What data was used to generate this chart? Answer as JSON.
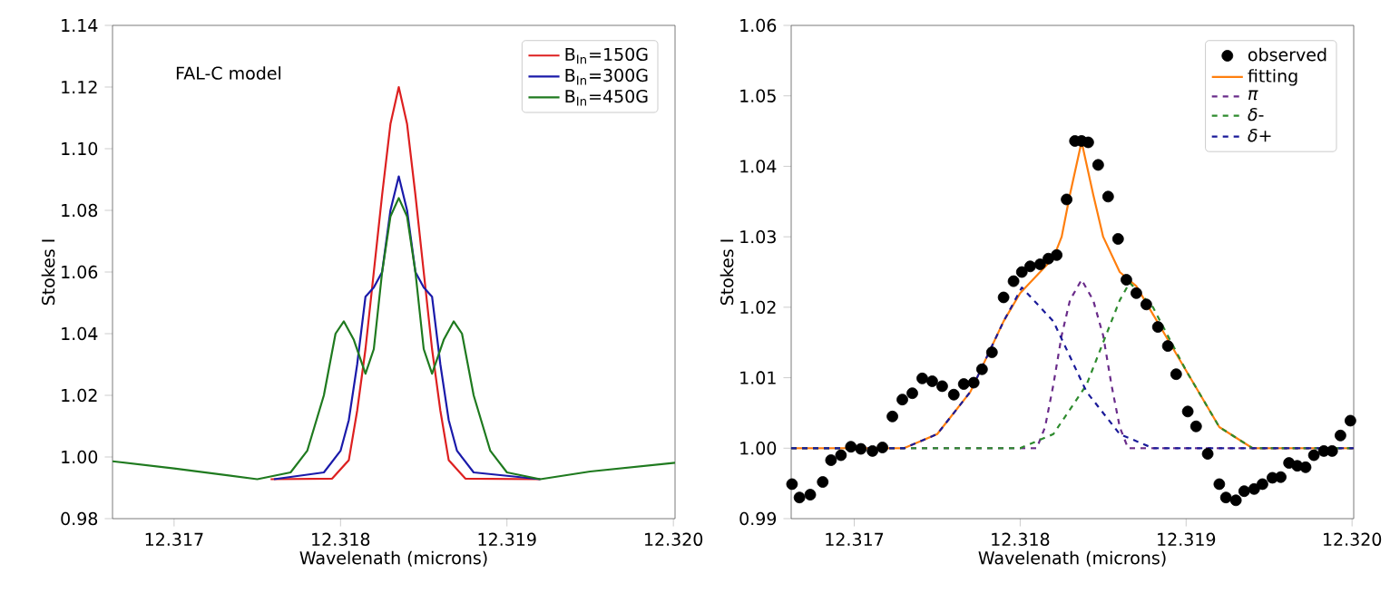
{
  "chart_data": [
    {
      "type": "line",
      "xlabel": "Wavelenath (microns)",
      "ylabel": "Stokes I",
      "annotations": [
        "FAL-C model"
      ],
      "legend": "top right",
      "grid": false,
      "xlim": [
        12.31663,
        12.32001
      ],
      "ylim": [
        0.98,
        1.14
      ],
      "xticks": [
        12.317,
        12.318,
        12.319,
        {
          "value": 12.32,
          "label": "12.320"
        }
      ],
      "yticks": [
        {
          "value": 0.98,
          "label": "0.98"
        },
        {
          "value": 1.0,
          "label": "1.00"
        },
        {
          "value": 1.02,
          "label": "1.02"
        },
        {
          "value": 1.04,
          "label": "1.04"
        },
        {
          "value": 1.06,
          "label": "1.06"
        },
        {
          "value": 1.08,
          "label": "1.08"
        },
        {
          "value": 1.1,
          "label": "1.10"
        },
        {
          "value": 1.12,
          "label": "1.12"
        },
        {
          "value": 1.14,
          "label": "1.14"
        }
      ],
      "series": [
        {
          "name": "B$_{In}$=150G",
          "color": "#dd2020",
          "x": [
            12.31758,
            12.31795,
            12.31805,
            12.3181,
            12.31815,
            12.3182,
            12.31825,
            12.3183,
            12.31835,
            12.3184,
            12.31845,
            12.3185,
            12.31855,
            12.3186,
            12.31865,
            12.31875,
            12.3192
          ],
          "values": [
            0.9928,
            0.993,
            0.999,
            1.015,
            1.035,
            1.06,
            1.085,
            1.108,
            1.12,
            1.108,
            1.085,
            1.06,
            1.035,
            1.015,
            0.999,
            0.993,
            0.9928
          ]
        },
        {
          "name": "B$_{In}$=300G",
          "color": "#1a1aaa",
          "x": [
            12.3176,
            12.3179,
            12.318,
            12.31805,
            12.3181,
            12.31815,
            12.3182,
            12.31825,
            12.3183,
            12.31835,
            12.3184,
            12.31845,
            12.3185,
            12.31855,
            12.3186,
            12.31865,
            12.3187,
            12.3188,
            12.3192
          ],
          "values": [
            0.9928,
            0.995,
            1.002,
            1.012,
            1.03,
            1.052,
            1.055,
            1.06,
            1.08,
            1.091,
            1.08,
            1.06,
            1.055,
            1.052,
            1.03,
            1.012,
            1.002,
            0.995,
            0.9928
          ]
        },
        {
          "name": "B$_{In}$=450G",
          "color": "#1f7a1f",
          "x": [
            12.31663,
            12.317,
            12.3175,
            12.3177,
            12.3178,
            12.3179,
            12.31797,
            12.31802,
            12.31808,
            12.31815,
            12.3182,
            12.31825,
            12.3183,
            12.31835,
            12.3184,
            12.31845,
            12.3185,
            12.31855,
            12.31862,
            12.31868,
            12.31873,
            12.3188,
            12.3189,
            12.319,
            12.3192,
            12.3195,
            12.32001
          ],
          "values": [
            0.9986,
            0.9963,
            0.9928,
            0.995,
            1.002,
            1.02,
            1.04,
            1.044,
            1.038,
            1.027,
            1.035,
            1.06,
            1.078,
            1.084,
            1.078,
            1.06,
            1.035,
            1.027,
            1.038,
            1.044,
            1.04,
            1.02,
            1.002,
            0.995,
            0.9928,
            0.9953,
            0.9981
          ]
        }
      ]
    },
    {
      "type": "line",
      "xlabel": "Wavelenath (microns)",
      "ylabel": "Stokes I",
      "legend": "top right",
      "grid": false,
      "xlim": [
        12.31662,
        12.32001
      ],
      "ylim": [
        0.99,
        1.06
      ],
      "xticks": [
        12.317,
        12.318,
        12.319,
        {
          "value": 12.32,
          "label": "12.320"
        }
      ],
      "yticks": [
        {
          "value": 0.99,
          "label": "0.99"
        },
        {
          "value": 1.0,
          "label": "1.00"
        },
        {
          "value": 1.01,
          "label": "1.01"
        },
        {
          "value": 1.02,
          "label": "1.02"
        },
        {
          "value": 1.03,
          "label": "1.03"
        },
        {
          "value": 1.04,
          "label": "1.04"
        },
        {
          "value": 1.05,
          "label": "1.05"
        },
        {
          "value": 1.06,
          "label": "1.06"
        }
      ],
      "series": [
        {
          "name": "observed",
          "type": "scatter",
          "marker": "circle",
          "color": "#000000",
          "x": [
            12.316625,
            12.31667,
            12.316735,
            12.31681,
            12.31686,
            12.31692,
            12.31698,
            12.31704,
            12.31711,
            12.31717,
            12.31723,
            12.31729,
            12.31735,
            12.31741,
            12.31747,
            12.31753,
            12.3176,
            12.31766,
            12.31772,
            12.31777,
            12.31783,
            12.3179,
            12.31796,
            12.31801,
            12.31806,
            12.31812,
            12.31817,
            12.31822,
            12.31828,
            12.31833,
            12.31837,
            12.31841,
            12.31847,
            12.31853,
            12.31859,
            12.31864,
            12.3187,
            12.31876,
            12.31883,
            12.31889,
            12.31894,
            12.31901,
            12.31906,
            12.31913,
            12.3192,
            12.31924,
            12.3193,
            12.31935,
            12.31941,
            12.31946,
            12.31952,
            12.31957,
            12.31962,
            12.31967,
            12.31972,
            12.31977,
            12.31983,
            12.31988,
            12.31993,
            12.31999
          ],
          "values": [
            0.9949,
            0.993,
            0.9934,
            0.9952,
            0.9983,
            0.999,
            1.0002,
            0.9999,
            0.9996,
            1.0001,
            1.0045,
            1.0069,
            1.0078,
            1.0099,
            1.0095,
            1.0088,
            1.0076,
            1.0091,
            1.0093,
            1.0112,
            1.0136,
            1.0214,
            1.0237,
            1.025,
            1.0258,
            1.0261,
            1.0269,
            1.0274,
            1.0353,
            1.0436,
            1.0436,
            1.0434,
            1.0402,
            1.0357,
            1.0297,
            1.0239,
            1.022,
            1.0204,
            1.0172,
            1.0145,
            1.0105,
            1.0052,
            1.0031,
            0.9992,
            0.9949,
            0.993,
            0.9926,
            0.9939,
            0.9942,
            0.9949,
            0.9958,
            0.9959,
            0.9979,
            0.9975,
            0.9973,
            0.999,
            0.9996,
            0.9996,
            1.0018,
            1.0039
          ]
        },
        {
          "name": "fitting",
          "color": "#ff7f0e",
          "line_style": "solid",
          "x": [
            12.31662,
            12.3173,
            12.3175,
            12.3177,
            12.3179,
            12.318,
            12.3182,
            12.31825,
            12.3183,
            12.31837,
            12.31844,
            12.3185,
            12.3186,
            12.3187,
            12.3188,
            12.319,
            12.3192,
            12.3194,
            12.32001
          ],
          "values": [
            1.0,
            1.0,
            1.002,
            1.008,
            1.018,
            1.022,
            1.027,
            1.03,
            1.036,
            1.0435,
            1.036,
            1.03,
            1.025,
            1.023,
            1.019,
            1.011,
            1.003,
            1.0,
            1.0
          ]
        },
        {
          "name": "*π*",
          "color": "#6a2c8a",
          "line_style": "dashed",
          "x": [
            12.31662,
            12.3181,
            12.31815,
            12.3182,
            12.31825,
            12.3183,
            12.31837,
            12.31844,
            12.3185,
            12.31855,
            12.3186,
            12.31865,
            12.32001
          ],
          "values": [
            1.0,
            1.0,
            1.003,
            1.009,
            1.016,
            1.021,
            1.0239,
            1.021,
            1.016,
            1.009,
            1.003,
            1.0,
            1.0
          ]
        },
        {
          "name": "*δ*-",
          "color": "#2e8b2e",
          "line_style": "dashed",
          "x": [
            12.31662,
            12.318,
            12.3182,
            12.3184,
            12.3186,
            12.31866,
            12.3188,
            12.319,
            12.3192,
            12.3194,
            12.32001
          ],
          "values": [
            1.0,
            1.0,
            1.002,
            1.009,
            1.021,
            1.0235,
            1.02,
            1.011,
            1.003,
            1.0,
            1.0
          ]
        },
        {
          "name": "*δ*+",
          "color": "#1a1a99",
          "line_style": "dashed",
          "x": [
            12.31662,
            12.3173,
            12.3175,
            12.3177,
            12.3179,
            12.31801,
            12.3182,
            12.3184,
            12.3186,
            12.3188,
            12.32001
          ],
          "values": [
            1.0,
            1.0,
            1.002,
            1.008,
            1.018,
            1.0228,
            1.018,
            1.008,
            1.002,
            1.0,
            1.0
          ]
        }
      ]
    }
  ]
}
